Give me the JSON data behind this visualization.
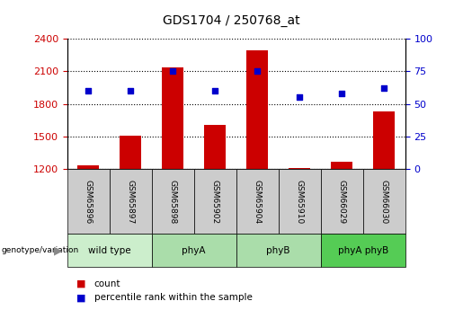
{
  "title": "GDS1704 / 250768_at",
  "samples": [
    "GSM65896",
    "GSM65897",
    "GSM65898",
    "GSM65902",
    "GSM65904",
    "GSM65910",
    "GSM66029",
    "GSM66030"
  ],
  "counts": [
    1230,
    1510,
    2140,
    1610,
    2290,
    1210,
    1270,
    1730
  ],
  "percentiles": [
    60,
    60,
    75,
    60,
    75,
    55,
    58,
    62
  ],
  "groups": [
    {
      "label": "wild type",
      "start": 0,
      "end": 2,
      "color": "#cceecc"
    },
    {
      "label": "phyA",
      "start": 2,
      "end": 4,
      "color": "#aaddaa"
    },
    {
      "label": "phyB",
      "start": 4,
      "end": 6,
      "color": "#aaddaa"
    },
    {
      "label": "phyA phyB",
      "start": 6,
      "end": 8,
      "color": "#55cc55"
    }
  ],
  "ylim_left": [
    1200,
    2400
  ],
  "ylim_right": [
    0,
    100
  ],
  "yticks_left": [
    1200,
    1500,
    1800,
    2100,
    2400
  ],
  "yticks_right": [
    0,
    25,
    50,
    75,
    100
  ],
  "bar_color": "#cc0000",
  "dot_color": "#0000cc",
  "bar_width": 0.5,
  "count_label": "count",
  "percentile_label": "percentile rank within the sample",
  "left_axis_color": "#cc0000",
  "right_axis_color": "#0000cc",
  "sample_box_color": "#cccccc",
  "figsize": [
    5.15,
    3.45
  ],
  "dpi": 100
}
